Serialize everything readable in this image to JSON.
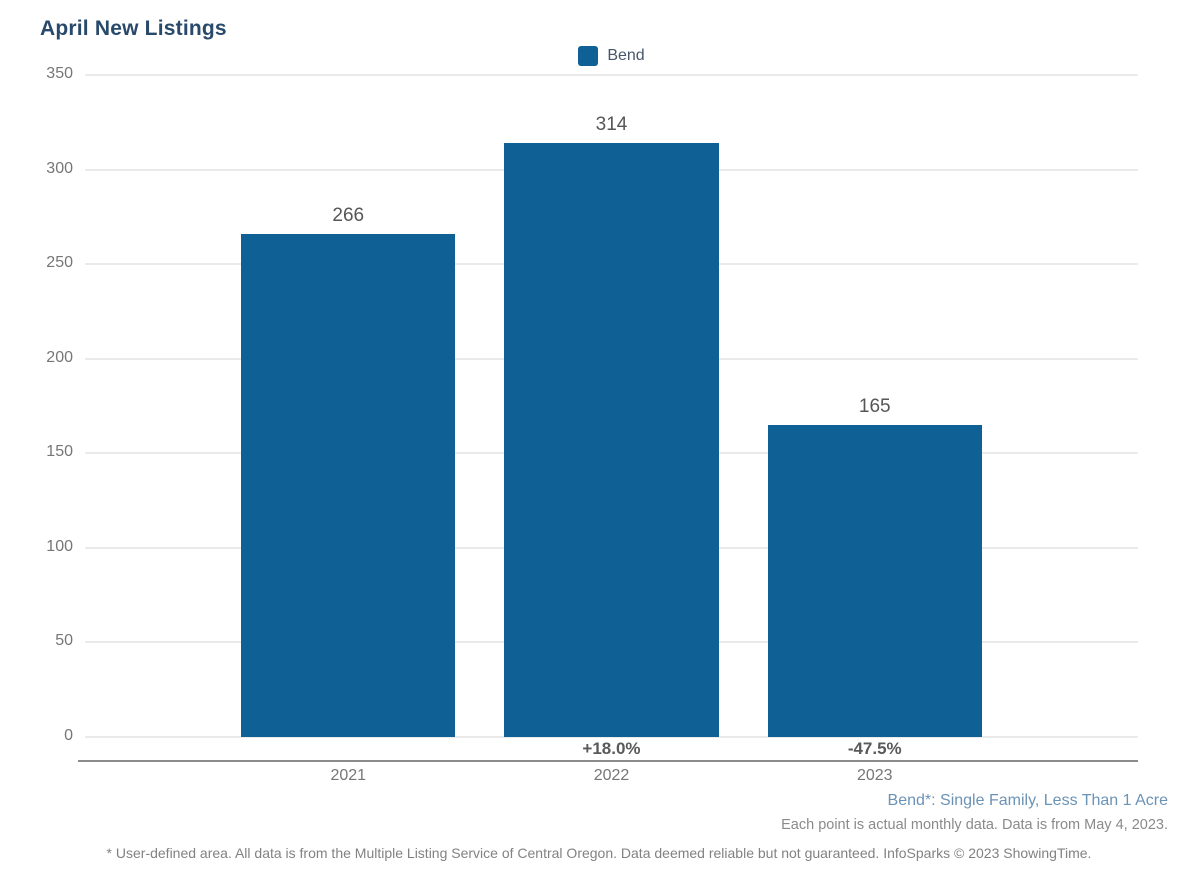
{
  "title": "April New Listings",
  "legend": {
    "label": "Bend"
  },
  "chart_data": {
    "type": "bar",
    "title": "April New Listings",
    "series_name": "Bend",
    "categories": [
      "2021",
      "2022",
      "2023"
    ],
    "values": [
      266,
      314,
      165
    ],
    "change_labels": [
      "",
      "+18.0%",
      "-47.5%"
    ],
    "ylim": [
      0,
      350
    ],
    "yticks": [
      350,
      300,
      250,
      200,
      150,
      100,
      50,
      0
    ],
    "grid": true,
    "legend_position": "top-center",
    "bar_color": "#0f6195"
  },
  "notes": {
    "series_definition": "Bend*: Single Family, Less Than 1 Acre",
    "data_note": "Each point is actual monthly data. Data is from May 4, 2023.",
    "disclaimer": "* User-defined area. All data is from the Multiple Listing Service of Central Oregon. Data deemed reliable but not guaranteed. InfoSparks © 2023 ShowingTime."
  },
  "colors": {
    "bar": "#0f6195",
    "title": "#29496b",
    "axis_text": "#767676",
    "value_text": "#565656",
    "note_blue": "#6b93b6",
    "note_gray": "#8a8a8a"
  }
}
